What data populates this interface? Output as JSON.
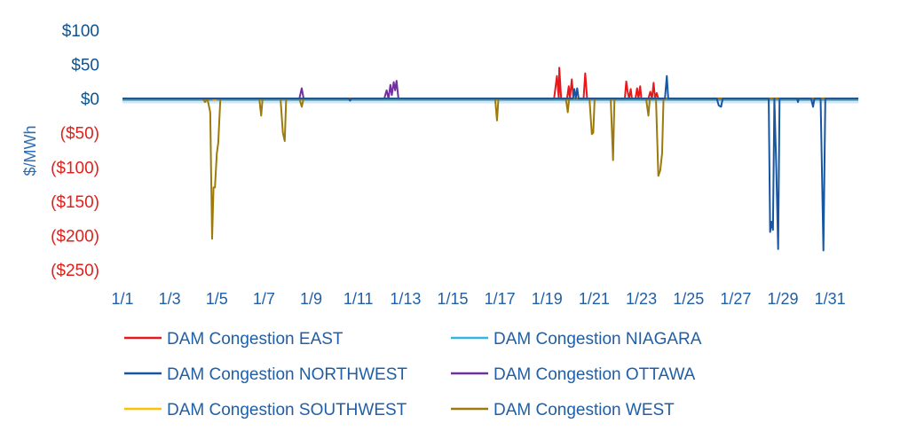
{
  "chart_data": {
    "type": "line",
    "title": "",
    "xlabel": "",
    "ylabel": "$/MWh",
    "ylim": [
      -250,
      100
    ],
    "xlim": [
      1,
      32.5
    ],
    "y_ticks": [
      {
        "value": 100,
        "label": "$100",
        "color": "#0b5394"
      },
      {
        "value": 50,
        "label": "$50",
        "color": "#0b5394"
      },
      {
        "value": 0,
        "label": "$0",
        "color": "#0b5394"
      },
      {
        "value": -50,
        "label": "($50)",
        "color": "#e0201b"
      },
      {
        "value": -100,
        "label": "($100)",
        "color": "#e0201b"
      },
      {
        "value": -150,
        "label": "($150)",
        "color": "#e0201b"
      },
      {
        "value": -200,
        "label": "($200)",
        "color": "#e0201b"
      },
      {
        "value": -250,
        "label": "($250)",
        "color": "#e0201b"
      }
    ],
    "x_ticks": [
      {
        "value": 1,
        "label": "1/1"
      },
      {
        "value": 3,
        "label": "1/3"
      },
      {
        "value": 5,
        "label": "1/5"
      },
      {
        "value": 7,
        "label": "1/7"
      },
      {
        "value": 9,
        "label": "1/9"
      },
      {
        "value": 11,
        "label": "1/11"
      },
      {
        "value": 13,
        "label": "1/13"
      },
      {
        "value": 15,
        "label": "1/15"
      },
      {
        "value": 17,
        "label": "1/17"
      },
      {
        "value": 19,
        "label": "1/19"
      },
      {
        "value": 21,
        "label": "1/21"
      },
      {
        "value": 23,
        "label": "1/23"
      },
      {
        "value": 25,
        "label": "1/25"
      },
      {
        "value": 27,
        "label": "1/27"
      },
      {
        "value": 29,
        "label": "1/29"
      },
      {
        "value": 31,
        "label": "1/31"
      }
    ],
    "legend_position": "bottom",
    "series": [
      {
        "name": "DAM Congestion EAST",
        "color": "#e8191c",
        "points": [
          [
            1,
            0
          ],
          [
            19.3,
            0
          ],
          [
            19.42,
            33
          ],
          [
            19.5,
            0
          ],
          [
            19.52,
            45
          ],
          [
            19.6,
            0
          ],
          [
            19.85,
            0
          ],
          [
            19.92,
            18
          ],
          [
            19.97,
            0
          ],
          [
            20.05,
            28
          ],
          [
            20.12,
            0
          ],
          [
            20.55,
            0
          ],
          [
            20.62,
            37
          ],
          [
            20.7,
            0
          ],
          [
            22.3,
            0
          ],
          [
            22.36,
            25
          ],
          [
            22.42,
            10
          ],
          [
            22.48,
            0
          ],
          [
            22.55,
            14
          ],
          [
            22.6,
            0
          ],
          [
            22.75,
            0
          ],
          [
            22.82,
            15
          ],
          [
            22.88,
            0
          ],
          [
            22.95,
            18
          ],
          [
            23.0,
            0
          ],
          [
            23.3,
            0
          ],
          [
            23.38,
            10
          ],
          [
            23.45,
            0
          ],
          [
            23.52,
            23
          ],
          [
            23.58,
            0
          ],
          [
            23.65,
            8
          ],
          [
            23.72,
            0
          ],
          [
            32.2,
            0
          ]
        ]
      },
      {
        "name": "DAM Congestion NIAGARA",
        "color": "#33b5e5",
        "fill": "#cfe8f8",
        "band": [
          -7,
          0
        ],
        "points": [
          [
            1,
            -2
          ],
          [
            32.2,
            -2
          ]
        ]
      },
      {
        "name": "DAM Congestion NORTHWEST",
        "color": "#1656a3",
        "points": [
          [
            1,
            0
          ],
          [
            10.6,
            0
          ],
          [
            10.65,
            -3
          ],
          [
            10.7,
            0
          ],
          [
            20.1,
            0
          ],
          [
            20.16,
            14
          ],
          [
            20.22,
            0
          ],
          [
            20.28,
            15
          ],
          [
            20.34,
            0
          ],
          [
            24.0,
            0
          ],
          [
            24.08,
            33
          ],
          [
            24.14,
            0
          ],
          [
            26.2,
            0
          ],
          [
            26.28,
            -10
          ],
          [
            26.38,
            -12
          ],
          [
            26.45,
            0
          ],
          [
            28.4,
            0
          ],
          [
            28.46,
            -195
          ],
          [
            28.52,
            -180
          ],
          [
            28.58,
            -192
          ],
          [
            28.64,
            0
          ],
          [
            28.72,
            -100
          ],
          [
            28.8,
            -220
          ],
          [
            28.86,
            0
          ],
          [
            29.6,
            0
          ],
          [
            29.64,
            -5
          ],
          [
            29.68,
            0
          ],
          [
            30.2,
            0
          ],
          [
            30.28,
            -12
          ],
          [
            30.34,
            0
          ],
          [
            30.6,
            0
          ],
          [
            30.72,
            -222
          ],
          [
            30.8,
            0
          ],
          [
            32.2,
            0
          ]
        ]
      },
      {
        "name": "DAM Congestion OTTAWA",
        "color": "#7030a0",
        "points": [
          [
            1,
            0
          ],
          [
            8.5,
            0
          ],
          [
            8.6,
            15
          ],
          [
            8.68,
            0
          ],
          [
            12.1,
            0
          ],
          [
            12.2,
            12
          ],
          [
            12.28,
            0
          ],
          [
            12.36,
            20
          ],
          [
            12.42,
            5
          ],
          [
            12.5,
            24
          ],
          [
            12.56,
            12
          ],
          [
            12.62,
            26
          ],
          [
            12.7,
            0
          ],
          [
            32.2,
            0
          ]
        ]
      },
      {
        "name": "DAM Congestion SOUTHWEST",
        "color": "#ffc000",
        "points": [
          [
            1,
            0
          ],
          [
            4.8,
            0
          ],
          [
            4.9,
            -3
          ],
          [
            5.0,
            0
          ],
          [
            32.2,
            0
          ]
        ]
      },
      {
        "name": "DAM Congestion WEST",
        "color": "#9c7b0c",
        "points": [
          [
            1,
            0
          ],
          [
            4.4,
            0
          ],
          [
            4.5,
            -5
          ],
          [
            4.6,
            0
          ],
          [
            4.72,
            -20
          ],
          [
            4.8,
            -205
          ],
          [
            4.86,
            -130
          ],
          [
            4.92,
            -130
          ],
          [
            5.0,
            -80
          ],
          [
            5.06,
            -65
          ],
          [
            5.15,
            0
          ],
          [
            6.8,
            0
          ],
          [
            6.88,
            -25
          ],
          [
            6.94,
            0
          ],
          [
            7.7,
            0
          ],
          [
            7.8,
            -50
          ],
          [
            7.88,
            -62
          ],
          [
            7.94,
            0
          ],
          [
            8.5,
            0
          ],
          [
            8.6,
            -12
          ],
          [
            8.68,
            0
          ],
          [
            16.8,
            0
          ],
          [
            16.88,
            -32
          ],
          [
            16.94,
            0
          ],
          [
            19.8,
            0
          ],
          [
            19.88,
            -20
          ],
          [
            19.94,
            0
          ],
          [
            20.8,
            0
          ],
          [
            20.9,
            -52
          ],
          [
            20.96,
            -50
          ],
          [
            21.02,
            0
          ],
          [
            21.7,
            0
          ],
          [
            21.8,
            -90
          ],
          [
            21.86,
            0
          ],
          [
            23.2,
            0
          ],
          [
            23.3,
            -25
          ],
          [
            23.36,
            0
          ],
          [
            23.62,
            0
          ],
          [
            23.72,
            -113
          ],
          [
            23.8,
            -105
          ],
          [
            23.88,
            -80
          ],
          [
            23.94,
            0
          ],
          [
            32.2,
            0
          ]
        ]
      }
    ]
  }
}
